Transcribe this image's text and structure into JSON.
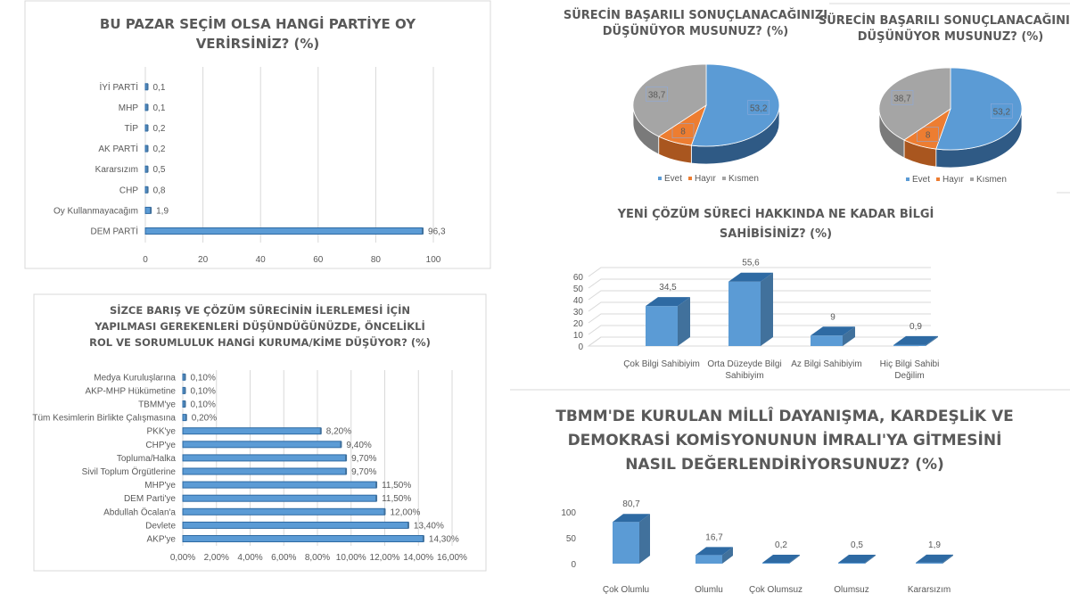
{
  "colors": {
    "bar": "#5b9bd5",
    "bar_dark": "#2e6aa3",
    "bar_side": "#41719c",
    "evet": "#5b9bd5",
    "hayir": "#ed7d31",
    "kismen": "#a5a5a5",
    "text": "#595959",
    "grid": "#d9d9d9"
  },
  "chart_data": [
    {
      "type": "bar",
      "orientation": "horizontal",
      "title_lines": [
        "BU PAZAR SEÇİM OLSA HANGİ PARTİYE OY",
        "VERİRSİNİZ? (%)"
      ],
      "categories": [
        "DEM PARTİ",
        "Oy Kullanmayacağım",
        "CHP",
        "Kararsızım",
        "AK PARTİ",
        "TİP",
        "MHP",
        "İYİ PARTİ"
      ],
      "values": [
        96.3,
        1.9,
        0.8,
        0.5,
        0.2,
        0.2,
        0.1,
        0.1
      ],
      "value_labels": [
        "96,3",
        "1,9",
        "0,8",
        "0,5",
        "0,2",
        "0,2",
        "0,1",
        "0,1"
      ],
      "xticks": [
        "0",
        "20",
        "40",
        "60",
        "80",
        "100"
      ],
      "xlim": [
        0,
        100
      ],
      "grid": true
    },
    {
      "type": "pie",
      "title_lines": [
        "SÜRECİN BAŞARILI SONUÇLANACAĞINIZI",
        "DÜŞÜNÜYOR MUSUNUZ? (%)"
      ],
      "categories": [
        "Evet",
        "Hayır",
        "Kısmen"
      ],
      "values": [
        53.2,
        8,
        38.7
      ],
      "value_labels": [
        "53,2",
        "8",
        "38,7"
      ],
      "legend": "bottom"
    },
    {
      "type": "pie",
      "title_lines": [
        "SÜRECİN BAŞARILI SONUÇLANACAĞINIZI",
        "DÜŞÜNÜYOR MUSUNUZ? (%)"
      ],
      "categories": [
        "Evet",
        "Hayır",
        "Kısmen"
      ],
      "values": [
        53.2,
        8,
        38.7
      ],
      "value_labels": [
        "53,2",
        "8",
        "38,7"
      ],
      "legend": "bottom"
    },
    {
      "type": "bar",
      "orientation": "vertical",
      "title_lines": [
        "YENİ ÇÖZÜM SÜRECİ HAKKINDA NE KADAR BİLGİ",
        "SAHİBİSİNİZ? (%)"
      ],
      "categories": [
        [
          "Çok Bilgi Sahibiyim"
        ],
        [
          "Orta Düzeyde Bilgi",
          "Sahibiyim"
        ],
        [
          "Az Bilgi Sahibiyim"
        ],
        [
          "Hiç Bilgi Sahibi",
          "Değilim"
        ]
      ],
      "values": [
        34.5,
        55.6,
        9,
        0.9
      ],
      "value_labels": [
        "34,5",
        "55,6",
        "9",
        "0,9"
      ],
      "yticks": [
        "0",
        "10",
        "20",
        "30",
        "40",
        "50",
        "60"
      ],
      "ylim": [
        0,
        60
      ],
      "grid": true
    },
    {
      "type": "bar",
      "orientation": "horizontal",
      "title_lines": [
        "SİZCE BARIŞ VE ÇÖZÜM SÜRECİNİN İLERLEMESİ İÇİN",
        "YAPILMASI GEREKENLERİ DÜŞÜNDÜĞÜNÜZDE, ÖNCELİKLİ",
        "ROL VE SORUMLULUK HANGİ KURUMA/KİME DÜŞÜYOR? (%)"
      ],
      "categories": [
        "AKP'ye",
        "Devlete",
        "Abdullah Öcalan'a",
        "DEM Parti'ye",
        "MHP'ye",
        "Sivil Toplum Örgütlerine",
        "Topluma/Halka",
        "CHP'ye",
        "PKK'ye",
        "Tüm Kesimlerin Birlikte Çalışmasına",
        "TBMM'ye",
        "AKP-MHP Hükümetine",
        "Medya Kuruluşlarına"
      ],
      "values": [
        14.3,
        13.4,
        12.0,
        11.5,
        11.5,
        9.7,
        9.7,
        9.4,
        8.2,
        0.2,
        0.1,
        0.1,
        0.1
      ],
      "value_labels": [
        "14,30%",
        "13,40%",
        "12,00%",
        "11,50%",
        "11,50%",
        "9,70%",
        "9,70%",
        "9,40%",
        "8,20%",
        "0,20%",
        "0,10%",
        "0,10%",
        "0,10%"
      ],
      "xticks": [
        "0,00%",
        "2,00%",
        "4,00%",
        "6,00%",
        "8,00%",
        "10,00%",
        "12,00%",
        "14,00%",
        "16,00%"
      ],
      "xlim": [
        0,
        16
      ],
      "grid": true
    },
    {
      "type": "bar",
      "orientation": "vertical",
      "title_lines": [
        "TBMM'DE KURULAN MİLLÎ DAYANIŞMA, KARDEŞLİK VE",
        "DEMOKRASİ KOMİSYONUNUN İMRALI'YA GİTMESİNİ",
        "NASIL DEĞERLENDİRİYORSUNUZ? (%)"
      ],
      "categories": [
        [
          "Çok Olumlu"
        ],
        [
          "Olumlu"
        ],
        [
          "Çok Olumsuz"
        ],
        [
          "Olumsuz"
        ],
        [
          "Kararsızım"
        ]
      ],
      "values": [
        80.7,
        16.7,
        0.2,
        0.5,
        1.9
      ],
      "value_labels": [
        "80,7",
        "16,7",
        "0,2",
        "0,5",
        "1,9"
      ],
      "yticks": [
        "0",
        "50",
        "100"
      ],
      "ylim": [
        0,
        100
      ],
      "grid": false
    }
  ]
}
